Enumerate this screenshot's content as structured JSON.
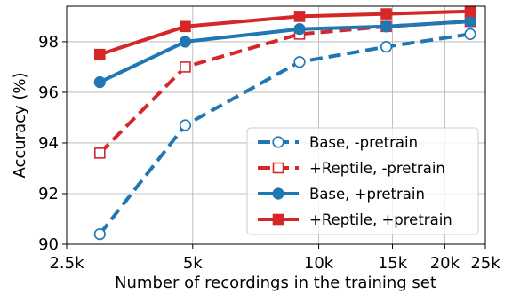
{
  "chart_data": {
    "type": "line",
    "title": "",
    "xlabel": "Number of recordings in the training set",
    "ylabel": "Accuracy (%)",
    "xscale": "log",
    "xlim": [
      2500,
      25000
    ],
    "ylim": [
      90,
      99.4
    ],
    "x_ticks": [
      2500,
      5000,
      10000,
      15000,
      20000,
      25000
    ],
    "x_tick_labels": [
      "2.5k",
      "5k",
      "10k",
      "15k",
      "20k",
      "25k"
    ],
    "y_ticks": [
      90,
      92,
      94,
      96,
      98
    ],
    "y_tick_labels": [
      "90",
      "92",
      "94",
      "96",
      "98"
    ],
    "grid": true,
    "legend_position": "lower-right",
    "x": [
      3000,
      4800,
      9000,
      14500,
      23000
    ],
    "series": [
      {
        "name": "Base, -pretrain",
        "values": [
          90.4,
          94.7,
          97.2,
          97.8,
          98.3
        ],
        "color": "#1f77b4",
        "line_style": "dashed",
        "marker": "open-circle"
      },
      {
        "name": "+Reptile, -pretrain",
        "values": [
          93.6,
          97.0,
          98.3,
          98.6,
          98.8
        ],
        "color": "#d62728",
        "line_style": "dashed",
        "marker": "open-square"
      },
      {
        "name": "Base, +pretrain",
        "values": [
          96.4,
          98.0,
          98.5,
          98.6,
          98.8
        ],
        "color": "#1f77b4",
        "line_style": "solid",
        "marker": "filled-circle"
      },
      {
        "name": "+Reptile, +pretrain",
        "values": [
          97.5,
          98.6,
          99.0,
          99.1,
          99.2
        ],
        "color": "#d62728",
        "line_style": "solid",
        "marker": "filled-square"
      }
    ]
  }
}
